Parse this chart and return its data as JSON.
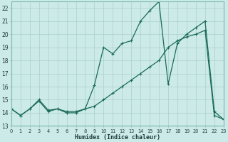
{
  "xlabel": "Humidex (Indice chaleur)",
  "background_color": "#cceae8",
  "line_color": "#1a6b5a",
  "grid_color": "#aacfcc",
  "x_vals": [
    0,
    1,
    2,
    3,
    4,
    5,
    6,
    7,
    8,
    9,
    10,
    11,
    12,
    13,
    14,
    15,
    16,
    17,
    18,
    19,
    20,
    21,
    22,
    23
  ],
  "y_actual": [
    14.3,
    13.8,
    14.3,
    14.9,
    14.1,
    14.3,
    14.0,
    14.0,
    14.3,
    16.1,
    19.0,
    18.5,
    19.3,
    19.5,
    21.0,
    21.8,
    22.5,
    16.2,
    19.3,
    20.0,
    20.5,
    21.0,
    14.1,
    13.5
  ],
  "y_trend": [
    14.3,
    13.8,
    14.3,
    15.0,
    14.2,
    14.3,
    14.1,
    14.1,
    14.3,
    14.5,
    15.0,
    15.5,
    16.0,
    16.5,
    17.0,
    17.5,
    18.0,
    19.0,
    19.5,
    19.8,
    20.0,
    20.3,
    13.8,
    13.5
  ],
  "ylim": [
    13,
    22.5
  ],
  "xlim": [
    0,
    23
  ],
  "yticks": [
    13,
    14,
    15,
    16,
    17,
    18,
    19,
    20,
    21,
    22
  ],
  "xticks": [
    0,
    1,
    2,
    3,
    4,
    5,
    6,
    7,
    8,
    9,
    10,
    11,
    12,
    13,
    14,
    15,
    16,
    17,
    18,
    19,
    20,
    21,
    22,
    23
  ]
}
